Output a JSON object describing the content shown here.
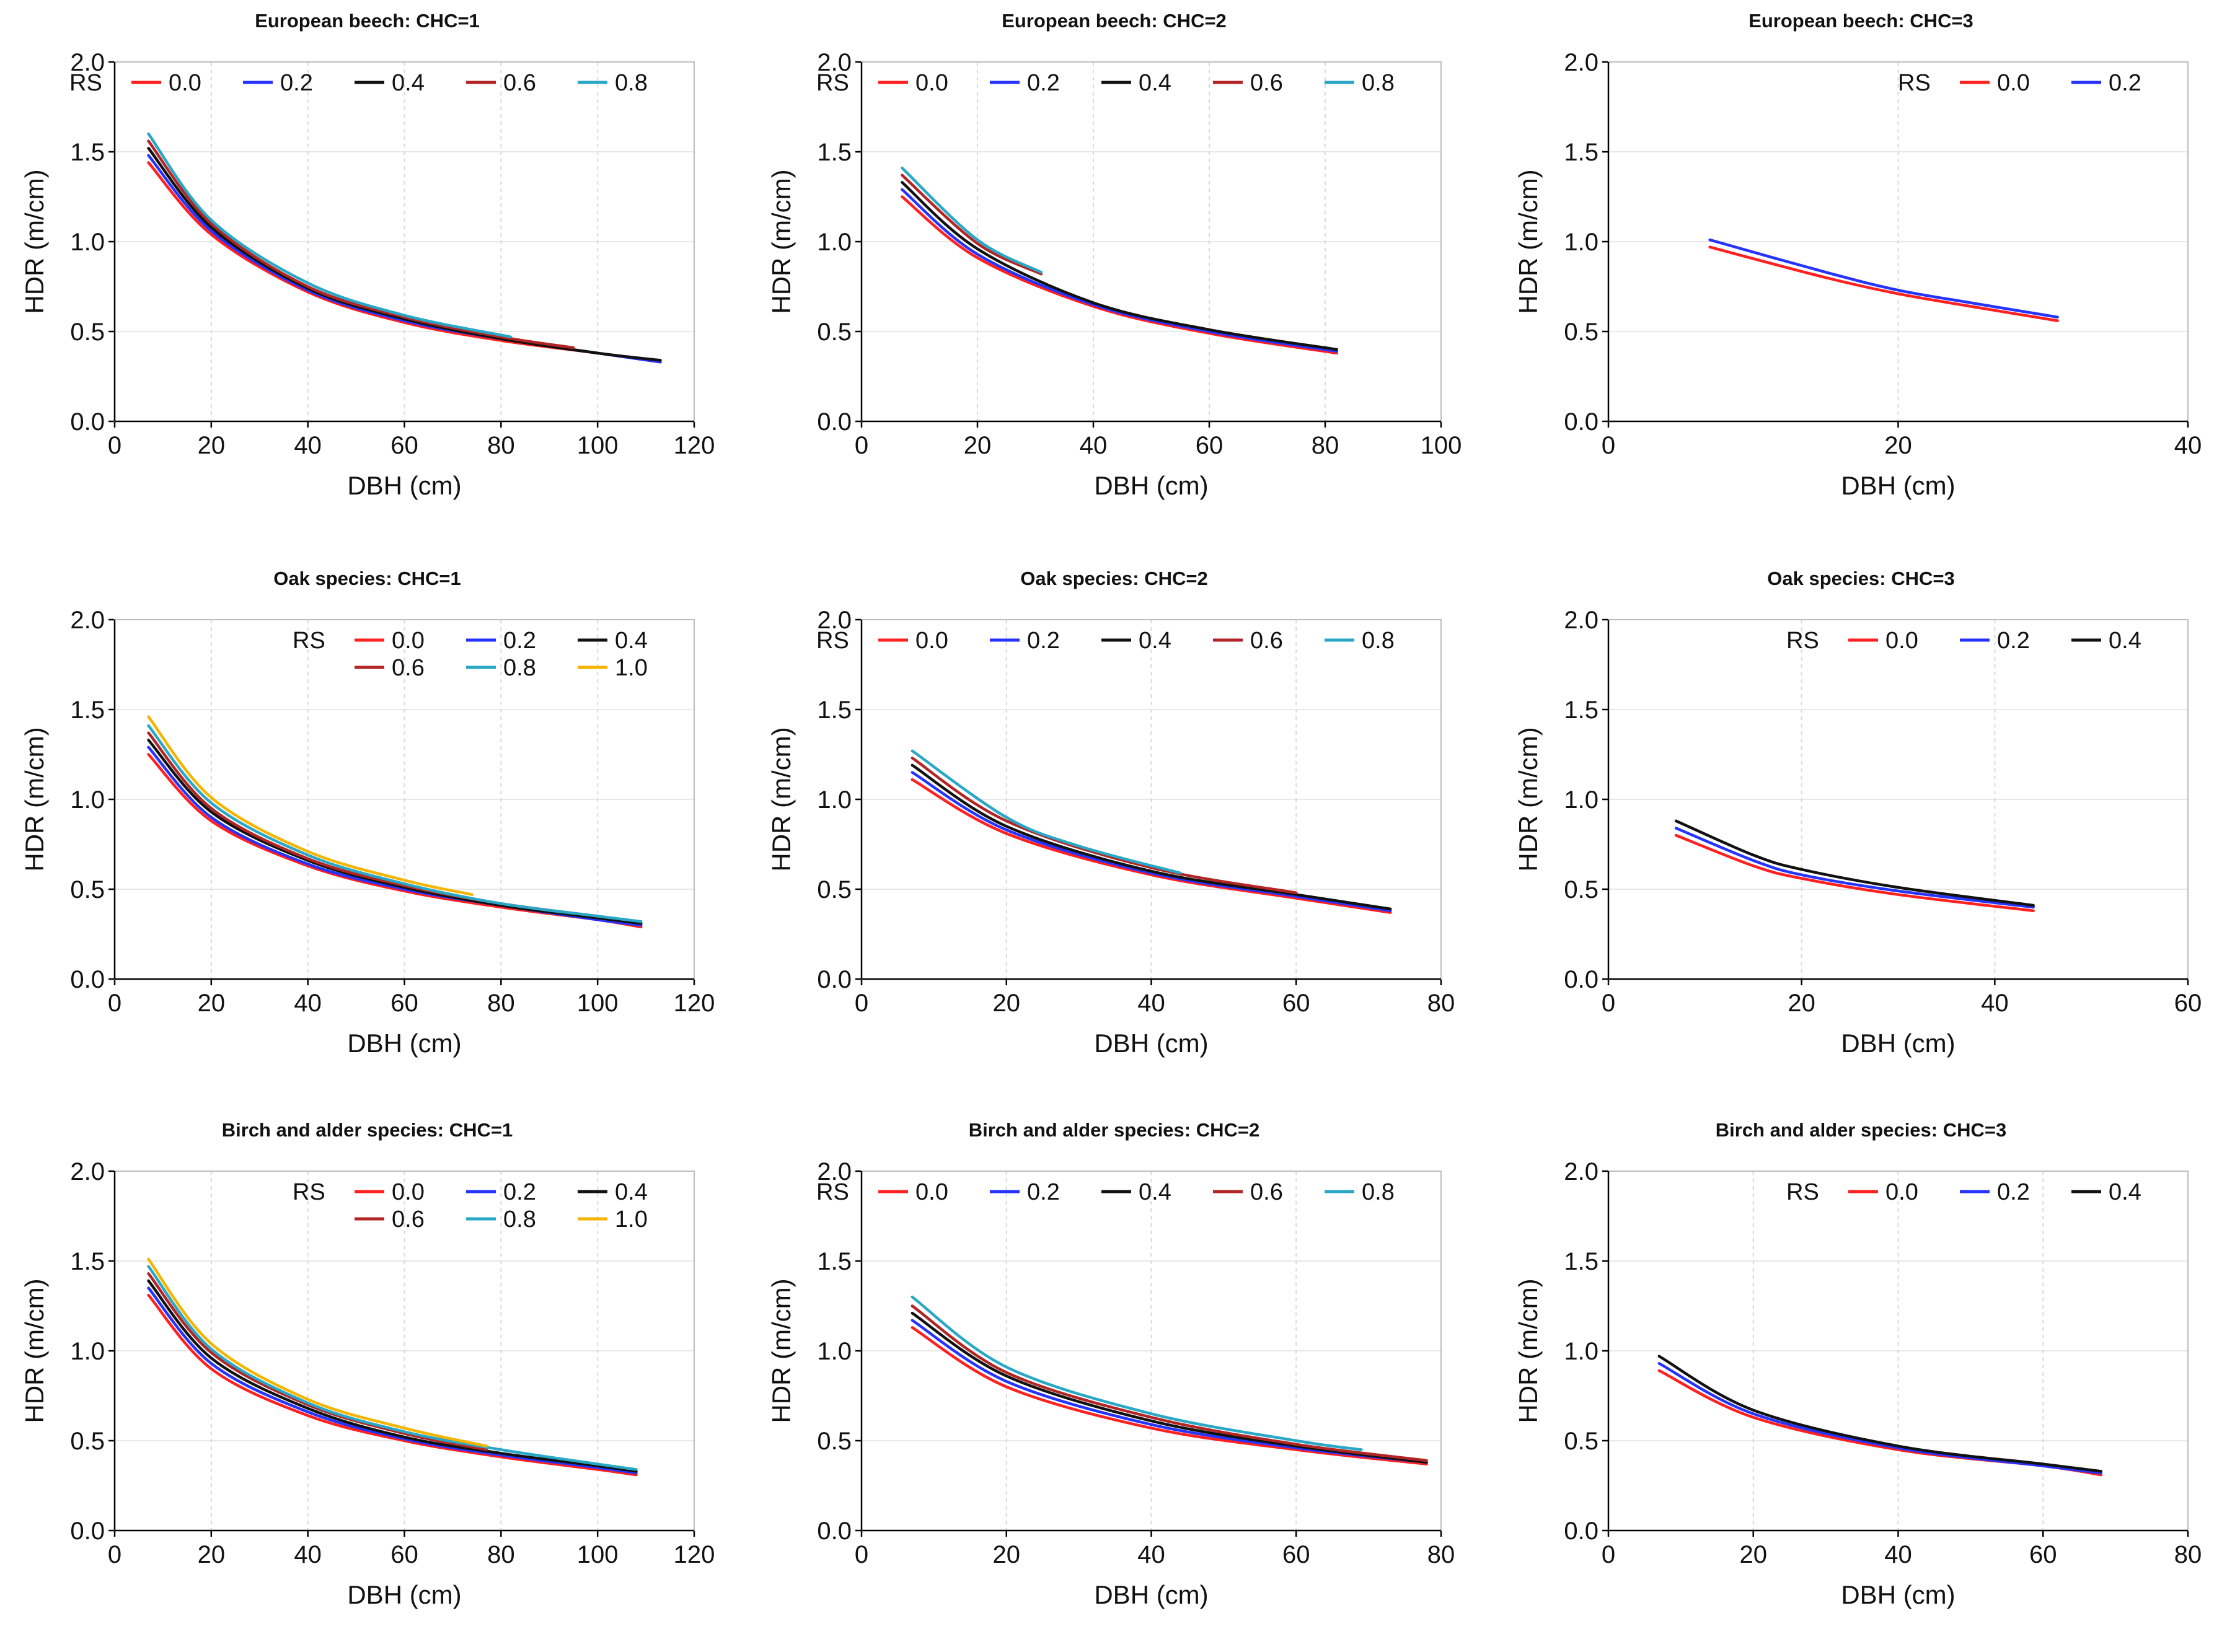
{
  "figure": {
    "xlabel": "DBH (cm)",
    "ylabel": "HDR (m/cm)",
    "legend_title": "RS",
    "colors": {
      "0.0": "#ff2020",
      "0.2": "#2633ff",
      "0.4": "#111111",
      "0.6": "#b32525",
      "0.8": "#28a7c7",
      "1.0": "#f5b400"
    }
  },
  "chart_data": [
    {
      "type": "line",
      "title": "European beech: CHC=1",
      "xlabel": "DBH (cm)",
      "ylabel": "HDR (m/cm)",
      "xlim": [
        0,
        120
      ],
      "ylim": [
        0,
        2.0
      ],
      "xticks": [
        "0",
        "20",
        "40",
        "60",
        "80",
        "100",
        "120"
      ],
      "yticks": [
        "0.0",
        "0.5",
        "1.0",
        "1.5",
        "2.0"
      ],
      "legend_rows": [
        [
          "0.0",
          "0.2",
          "0.4",
          "0.6",
          "0.8"
        ]
      ],
      "series": [
        {
          "name": "0.0",
          "x": [
            7,
            20,
            40,
            60,
            80,
            100,
            113
          ],
          "y": [
            1.44,
            1.04,
            0.72,
            0.55,
            0.45,
            0.38,
            0.33
          ]
        },
        {
          "name": "0.2",
          "x": [
            7,
            20,
            40,
            60,
            80,
            100,
            113
          ],
          "y": [
            1.48,
            1.06,
            0.73,
            0.56,
            0.46,
            0.38,
            0.33
          ]
        },
        {
          "name": "0.4",
          "x": [
            7,
            20,
            40,
            60,
            80,
            100,
            113
          ],
          "y": [
            1.52,
            1.08,
            0.74,
            0.57,
            0.46,
            0.38,
            0.34
          ]
        },
        {
          "name": "0.6",
          "x": [
            7,
            20,
            40,
            60,
            80,
            95
          ],
          "y": [
            1.56,
            1.1,
            0.75,
            0.58,
            0.47,
            0.41
          ]
        },
        {
          "name": "0.8",
          "x": [
            7,
            20,
            40,
            60,
            82
          ],
          "y": [
            1.6,
            1.12,
            0.77,
            0.59,
            0.47
          ]
        }
      ]
    },
    {
      "type": "line",
      "title": "European beech: CHC=2",
      "xlabel": "DBH (cm)",
      "ylabel": "HDR (m/cm)",
      "xlim": [
        0,
        100
      ],
      "ylim": [
        0,
        2.0
      ],
      "xticks": [
        "0",
        "20",
        "40",
        "60",
        "80",
        "100"
      ],
      "yticks": [
        "0.0",
        "0.5",
        "1.0",
        "1.5",
        "2.0"
      ],
      "legend_rows": [
        [
          "0.0",
          "0.2",
          "0.4",
          "0.6",
          "0.8"
        ]
      ],
      "series": [
        {
          "name": "0.0",
          "x": [
            7,
            20,
            40,
            60,
            82
          ],
          "y": [
            1.25,
            0.91,
            0.64,
            0.49,
            0.38
          ]
        },
        {
          "name": "0.2",
          "x": [
            7,
            20,
            40,
            60,
            82
          ],
          "y": [
            1.29,
            0.93,
            0.65,
            0.5,
            0.39
          ]
        },
        {
          "name": "0.4",
          "x": [
            7,
            20,
            40,
            60,
            82
          ],
          "y": [
            1.33,
            0.96,
            0.66,
            0.51,
            0.4
          ]
        },
        {
          "name": "0.6",
          "x": [
            7,
            20,
            31
          ],
          "y": [
            1.37,
            0.99,
            0.82
          ]
        },
        {
          "name": "0.8",
          "x": [
            7,
            20,
            31
          ],
          "y": [
            1.41,
            1.01,
            0.83
          ]
        }
      ]
    },
    {
      "type": "line",
      "title": "European beech: CHC=3",
      "xlabel": "DBH (cm)",
      "ylabel": "HDR (m/cm)",
      "xlim": [
        0,
        40
      ],
      "ylim": [
        0,
        2.0
      ],
      "xticks": [
        "0",
        "20",
        "40"
      ],
      "yticks": [
        "0.0",
        "0.5",
        "1.0",
        "1.5",
        "2.0"
      ],
      "legend_rows": [
        [
          "0.0",
          "0.2"
        ]
      ],
      "series": [
        {
          "name": "0.0",
          "x": [
            7,
            15,
            20,
            25,
            31
          ],
          "y": [
            0.97,
            0.8,
            0.71,
            0.64,
            0.56
          ]
        },
        {
          "name": "0.2",
          "x": [
            7,
            15,
            20,
            25,
            31
          ],
          "y": [
            1.01,
            0.83,
            0.73,
            0.66,
            0.58
          ]
        }
      ]
    },
    {
      "type": "line",
      "title": "Oak species: CHC=1",
      "xlabel": "DBH (cm)",
      "ylabel": "HDR (m/cm)",
      "xlim": [
        0,
        120
      ],
      "ylim": [
        0,
        2.0
      ],
      "xticks": [
        "0",
        "20",
        "40",
        "60",
        "80",
        "100",
        "120"
      ],
      "yticks": [
        "0.0",
        "0.5",
        "1.0",
        "1.5",
        "2.0"
      ],
      "legend_rows": [
        [
          "0.0",
          "0.2",
          "0.4"
        ],
        [
          "0.6",
          "0.8",
          "1.0"
        ]
      ],
      "series": [
        {
          "name": "0.0",
          "x": [
            7,
            20,
            40,
            60,
            80,
            100,
            109
          ],
          "y": [
            1.25,
            0.88,
            0.63,
            0.49,
            0.4,
            0.33,
            0.29
          ]
        },
        {
          "name": "0.2",
          "x": [
            7,
            20,
            40,
            60,
            80,
            100,
            109
          ],
          "y": [
            1.29,
            0.9,
            0.64,
            0.5,
            0.41,
            0.33,
            0.3
          ]
        },
        {
          "name": "0.4",
          "x": [
            7,
            20,
            40,
            60,
            80,
            100,
            109
          ],
          "y": [
            1.33,
            0.93,
            0.66,
            0.51,
            0.41,
            0.34,
            0.31
          ]
        },
        {
          "name": "0.6",
          "x": [
            7,
            20,
            40,
            60,
            80,
            100
          ],
          "y": [
            1.37,
            0.95,
            0.67,
            0.52,
            0.42,
            0.35
          ]
        },
        {
          "name": "0.8",
          "x": [
            7,
            20,
            40,
            60,
            80,
            100,
            109
          ],
          "y": [
            1.41,
            0.98,
            0.69,
            0.53,
            0.42,
            0.35,
            0.32
          ]
        },
        {
          "name": "1.0",
          "x": [
            7,
            20,
            40,
            60,
            74
          ],
          "y": [
            1.46,
            1.01,
            0.71,
            0.55,
            0.47
          ]
        }
      ]
    },
    {
      "type": "line",
      "title": "Oak species: CHC=2",
      "xlabel": "DBH (cm)",
      "ylabel": "HDR (m/cm)",
      "xlim": [
        0,
        80
      ],
      "ylim": [
        0,
        2.0
      ],
      "xticks": [
        "0",
        "20",
        "40",
        "60",
        "80"
      ],
      "yticks": [
        "0.0",
        "0.5",
        "1.0",
        "1.5",
        "2.0"
      ],
      "legend_rows": [
        [
          "0.0",
          "0.2",
          "0.4",
          "0.6",
          "0.8"
        ]
      ],
      "series": [
        {
          "name": "0.0",
          "x": [
            7,
            20,
            40,
            60,
            73
          ],
          "y": [
            1.11,
            0.81,
            0.58,
            0.45,
            0.37
          ]
        },
        {
          "name": "0.2",
          "x": [
            7,
            20,
            40,
            60,
            73
          ],
          "y": [
            1.15,
            0.83,
            0.59,
            0.46,
            0.38
          ]
        },
        {
          "name": "0.4",
          "x": [
            7,
            20,
            40,
            60,
            73
          ],
          "y": [
            1.19,
            0.85,
            0.6,
            0.47,
            0.39
          ]
        },
        {
          "name": "0.6",
          "x": [
            7,
            20,
            40,
            60
          ],
          "y": [
            1.23,
            0.88,
            0.62,
            0.48
          ]
        },
        {
          "name": "0.8",
          "x": [
            7,
            20,
            30,
            44
          ],
          "y": [
            1.27,
            0.9,
            0.74,
            0.59
          ]
        }
      ]
    },
    {
      "type": "line",
      "title": "Oak species: CHC=3",
      "xlabel": "DBH (cm)",
      "ylabel": "HDR (m/cm)",
      "xlim": [
        0,
        60
      ],
      "ylim": [
        0,
        2.0
      ],
      "xticks": [
        "0",
        "20",
        "40",
        "60"
      ],
      "yticks": [
        "0.0",
        "0.5",
        "1.0",
        "1.5",
        "2.0"
      ],
      "legend_rows": [
        [
          "0.0",
          "0.2",
          "0.4"
        ]
      ],
      "series": [
        {
          "name": "0.0",
          "x": [
            7,
            15,
            20,
            30,
            44
          ],
          "y": [
            0.8,
            0.63,
            0.56,
            0.47,
            0.38
          ]
        },
        {
          "name": "0.2",
          "x": [
            7,
            15,
            20,
            30,
            44
          ],
          "y": [
            0.84,
            0.66,
            0.58,
            0.49,
            0.4
          ]
        },
        {
          "name": "0.4",
          "x": [
            7,
            15,
            20,
            30,
            44
          ],
          "y": [
            0.88,
            0.69,
            0.61,
            0.51,
            0.41
          ]
        }
      ]
    },
    {
      "type": "line",
      "title": "Birch and alder species: CHC=1",
      "xlabel": "DBH (cm)",
      "ylabel": "HDR (m/cm)",
      "xlim": [
        0,
        120
      ],
      "ylim": [
        0,
        2.0
      ],
      "xticks": [
        "0",
        "20",
        "40",
        "60",
        "80",
        "100",
        "120"
      ],
      "yticks": [
        "0.0",
        "0.5",
        "1.0",
        "1.5",
        "2.0"
      ],
      "legend_rows": [
        [
          "0.0",
          "0.2",
          "0.4"
        ],
        [
          "0.6",
          "0.8",
          "1.0"
        ]
      ],
      "series": [
        {
          "name": "0.0",
          "x": [
            7,
            20,
            40,
            60,
            80,
            100,
            108
          ],
          "y": [
            1.31,
            0.9,
            0.64,
            0.5,
            0.41,
            0.34,
            0.31
          ]
        },
        {
          "name": "0.2",
          "x": [
            7,
            20,
            40,
            60,
            80,
            100,
            108
          ],
          "y": [
            1.35,
            0.93,
            0.66,
            0.51,
            0.42,
            0.35,
            0.32
          ]
        },
        {
          "name": "0.4",
          "x": [
            7,
            20,
            40,
            60,
            80,
            100,
            108
          ],
          "y": [
            1.39,
            0.96,
            0.68,
            0.52,
            0.43,
            0.36,
            0.33
          ]
        },
        {
          "name": "0.6",
          "x": [
            7,
            20,
            40,
            60,
            77
          ],
          "y": [
            1.43,
            0.99,
            0.7,
            0.54,
            0.45
          ]
        },
        {
          "name": "0.8",
          "x": [
            7,
            20,
            40,
            60,
            80,
            100,
            108
          ],
          "y": [
            1.47,
            1.01,
            0.71,
            0.55,
            0.45,
            0.37,
            0.34
          ]
        },
        {
          "name": "1.0",
          "x": [
            7,
            20,
            40,
            60,
            77
          ],
          "y": [
            1.51,
            1.04,
            0.73,
            0.57,
            0.47
          ]
        }
      ]
    },
    {
      "type": "line",
      "title": "Birch and alder species: CHC=2",
      "xlabel": "DBH (cm)",
      "ylabel": "HDR (m/cm)",
      "xlim": [
        0,
        80
      ],
      "ylim": [
        0,
        2.0
      ],
      "xticks": [
        "0",
        "20",
        "40",
        "60",
        "80"
      ],
      "yticks": [
        "0.0",
        "0.5",
        "1.0",
        "1.5",
        "2.0"
      ],
      "legend_rows": [
        [
          "0.0",
          "0.2",
          "0.4",
          "0.6",
          "0.8"
        ]
      ],
      "series": [
        {
          "name": "0.0",
          "x": [
            7,
            20,
            40,
            60,
            78
          ],
          "y": [
            1.13,
            0.8,
            0.57,
            0.45,
            0.37
          ]
        },
        {
          "name": "0.2",
          "x": [
            7,
            20,
            40,
            60,
            78
          ],
          "y": [
            1.17,
            0.83,
            0.59,
            0.46,
            0.38
          ]
        },
        {
          "name": "0.4",
          "x": [
            7,
            20,
            40,
            60,
            78
          ],
          "y": [
            1.21,
            0.86,
            0.61,
            0.47,
            0.38
          ]
        },
        {
          "name": "0.6",
          "x": [
            7,
            20,
            40,
            60,
            78
          ],
          "y": [
            1.25,
            0.88,
            0.63,
            0.48,
            0.39
          ]
        },
        {
          "name": "0.8",
          "x": [
            7,
            20,
            40,
            60,
            69
          ],
          "y": [
            1.3,
            0.91,
            0.65,
            0.5,
            0.45
          ]
        }
      ]
    },
    {
      "type": "line",
      "title": "Birch and alder species: CHC=3",
      "xlabel": "DBH (cm)",
      "ylabel": "HDR (m/cm)",
      "xlim": [
        0,
        80
      ],
      "ylim": [
        0,
        2.0
      ],
      "xticks": [
        "0",
        "20",
        "40",
        "60",
        "80"
      ],
      "yticks": [
        "0.0",
        "0.5",
        "1.0",
        "1.5",
        "2.0"
      ],
      "legend_rows": [
        [
          "0.0",
          "0.2",
          "0.4"
        ]
      ],
      "series": [
        {
          "name": "0.0",
          "x": [
            7,
            20,
            40,
            60,
            68
          ],
          "y": [
            0.89,
            0.63,
            0.45,
            0.36,
            0.31
          ]
        },
        {
          "name": "0.2",
          "x": [
            7,
            20,
            40,
            60,
            68
          ],
          "y": [
            0.93,
            0.65,
            0.46,
            0.36,
            0.32
          ]
        },
        {
          "name": "0.4",
          "x": [
            7,
            20,
            40,
            60,
            68
          ],
          "y": [
            0.97,
            0.67,
            0.47,
            0.37,
            0.33
          ]
        }
      ]
    }
  ]
}
